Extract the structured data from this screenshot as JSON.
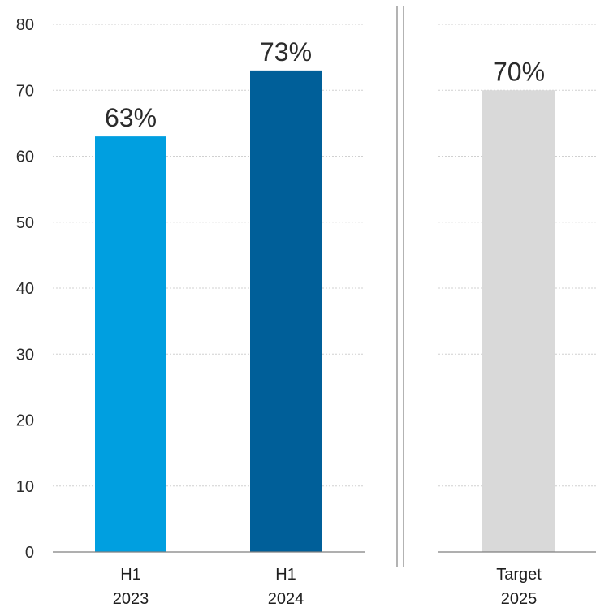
{
  "chart_data": {
    "type": "bar",
    "ylim": [
      0,
      80
    ],
    "yticks": [
      "0",
      "10",
      "20",
      "30",
      "40",
      "50",
      "60",
      "70",
      "80"
    ],
    "grid": true,
    "panels": [
      {
        "categories": [
          [
            "H1",
            "2023"
          ],
          [
            "H1",
            "2024"
          ]
        ],
        "values": [
          63,
          73
        ],
        "labels": [
          "63%",
          "73%"
        ],
        "colors": [
          "#009fe0",
          "#005f99"
        ]
      },
      {
        "categories": [
          [
            "Target",
            "2025"
          ]
        ],
        "values": [
          70
        ],
        "labels": [
          "70%"
        ],
        "colors": [
          "#d9d9d9"
        ]
      }
    ]
  }
}
